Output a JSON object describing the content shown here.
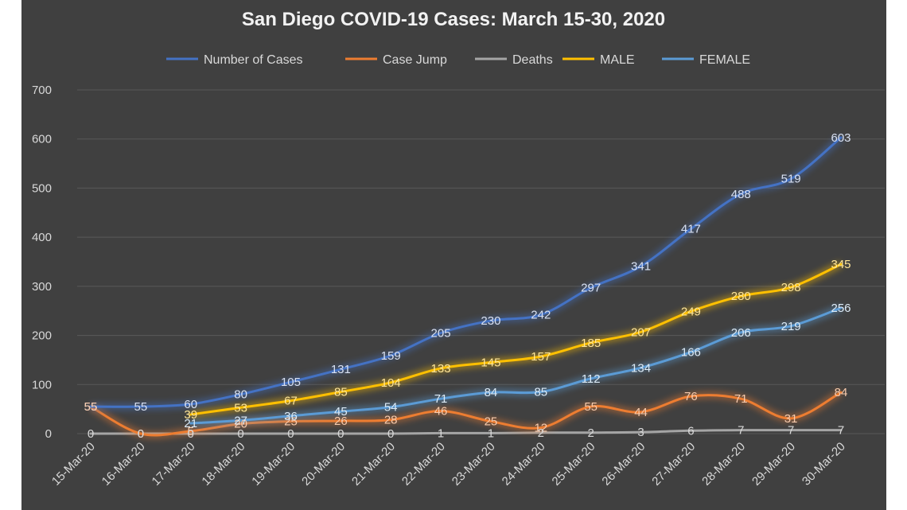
{
  "chart_data": {
    "type": "line",
    "title": "San Diego COVID-19 Cases: March 15-30, 2020",
    "xlabel": "",
    "ylabel": "",
    "ylim": [
      0,
      700
    ],
    "yticks": [
      0,
      100,
      200,
      300,
      400,
      500,
      600,
      700
    ],
    "grid": true,
    "legend_position": "top",
    "categories": [
      "15-Mar-20",
      "16-Mar-20",
      "17-Mar-20",
      "18-Mar-20",
      "19-Mar-20",
      "20-Mar-20",
      "21-Mar-20",
      "22-Mar-20",
      "23-Mar-20",
      "24-Mar-20",
      "25-Mar-20",
      "26-Mar-20",
      "27-Mar-20",
      "28-Mar-20",
      "29-Mar-20",
      "30-Mar-20"
    ],
    "series": [
      {
        "name": "Number of Cases",
        "color": "#4472c4",
        "label_color": "#d9e1f2",
        "values": [
          55,
          55,
          60,
          80,
          105,
          131,
          159,
          205,
          230,
          242,
          297,
          341,
          417,
          488,
          519,
          603
        ]
      },
      {
        "name": "Case Jump",
        "color": "#ed7d31",
        "label_color": "#f8cbad",
        "values": [
          55,
          0,
          5,
          20,
          25,
          26,
          28,
          46,
          25,
          12,
          55,
          44,
          76,
          71,
          31,
          84
        ]
      },
      {
        "name": "Deaths",
        "color": "#a5a5a5",
        "label_color": "#d9d9d9",
        "values": [
          0,
          0,
          0,
          0,
          0,
          0,
          0,
          1,
          1,
          2,
          2,
          3,
          6,
          7,
          7,
          7
        ]
      },
      {
        "name": "MALE",
        "color": "#ffc000",
        "label_color": "#ffe699",
        "values": [
          null,
          null,
          39,
          53,
          67,
          85,
          104,
          133,
          145,
          157,
          185,
          207,
          249,
          280,
          298,
          345
        ]
      },
      {
        "name": "FEMALE",
        "color": "#5b9bd5",
        "label_color": "#ddebf7",
        "values": [
          null,
          null,
          21,
          27,
          36,
          45,
          54,
          71,
          84,
          85,
          112,
          134,
          166,
          206,
          219,
          256
        ]
      }
    ]
  }
}
